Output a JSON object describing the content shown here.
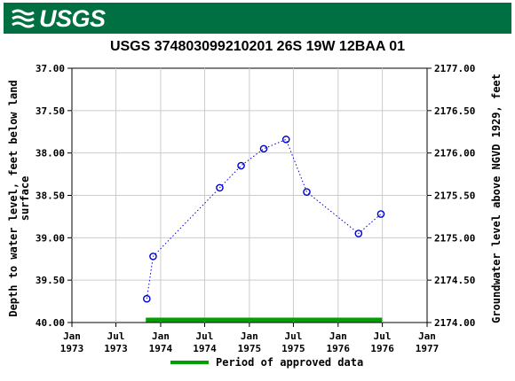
{
  "header": {
    "logo_text": "USGS",
    "logo_icon": "usgs-wave-icon",
    "banner_color": "#006f41"
  },
  "chart_data": {
    "type": "scatter",
    "title": "USGS 374803099210201 26S 19W 12BAA 01",
    "ylabel_left": [
      "Depth to water level, feet below land",
      "surface"
    ],
    "ylabel_right": "Groundwater level above NGVD 1929, feet",
    "y_left_range": [
      40.0,
      37.0
    ],
    "y_left_ticks": [
      "37.00",
      "37.50",
      "38.00",
      "38.50",
      "39.00",
      "39.50",
      "40.00"
    ],
    "y_right_range": [
      2174.0,
      2177.0
    ],
    "y_right_ticks": [
      "2177.00",
      "2176.50",
      "2176.00",
      "2175.50",
      "2175.00",
      "2174.50",
      "2174.00"
    ],
    "x_range": [
      "1973-01-01",
      "1977-01-01"
    ],
    "x_ticks": [
      {
        "date": "1973-01-01",
        "line1": "Jan",
        "line2": "1973"
      },
      {
        "date": "1973-07-01",
        "line1": "Jul",
        "line2": "1973"
      },
      {
        "date": "1974-01-01",
        "line1": "Jan",
        "line2": "1974"
      },
      {
        "date": "1974-07-01",
        "line1": "Jul",
        "line2": "1974"
      },
      {
        "date": "1975-01-01",
        "line1": "Jan",
        "line2": "1975"
      },
      {
        "date": "1975-07-01",
        "line1": "Jul",
        "line2": "1975"
      },
      {
        "date": "1976-01-01",
        "line1": "Jan",
        "line2": "1976"
      },
      {
        "date": "1976-07-01",
        "line1": "Jul",
        "line2": "1976"
      },
      {
        "date": "1977-01-01",
        "line1": "Jan",
        "line2": "1977"
      }
    ],
    "grid": true,
    "series": [
      {
        "points": [
          {
            "x": "1973-11-05",
            "y": 39.72
          },
          {
            "x": "1973-12-01",
            "y": 39.22
          },
          {
            "x": "1974-09-01",
            "y": 38.41
          },
          {
            "x": "1974-11-28",
            "y": 38.15
          },
          {
            "x": "1975-03-01",
            "y": 37.95
          },
          {
            "x": "1975-06-01",
            "y": 37.84
          },
          {
            "x": "1975-08-25",
            "y": 38.46
          },
          {
            "x": "1976-03-25",
            "y": 38.95
          },
          {
            "x": "1976-06-25",
            "y": 38.72
          }
        ],
        "color": "#0000cc",
        "line_style": "dotted",
        "marker": "open-circle"
      }
    ],
    "approved_period": {
      "start": "1973-11-01",
      "end": "1976-06-30",
      "color": "#00a000"
    },
    "legend": {
      "label": "Period of approved data",
      "placement": "bottom-center"
    }
  }
}
